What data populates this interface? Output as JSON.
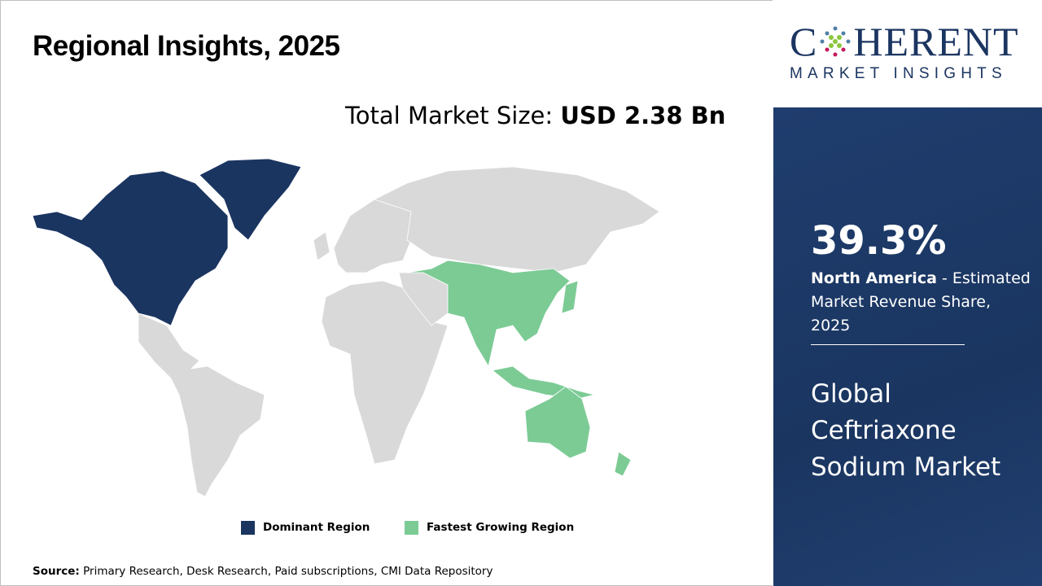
{
  "title": "Regional Insights, 2025",
  "total_market": {
    "label": "Total Market Size:",
    "value": "USD 2.38 Bn"
  },
  "legend": [
    {
      "label": "Dominant Region",
      "color": "#1b3561"
    },
    {
      "label": "Fastest Growing Region",
      "color": "#7ccb95"
    }
  ],
  "source": {
    "label": "Source:",
    "text": "Primary Research, Desk Research, Paid subscriptions, CMI Data Repository"
  },
  "logo": {
    "top": "COHERENT",
    "bottom": "MARKET INSIGHTS"
  },
  "sidebar": {
    "share": "39.3%",
    "region": "North America",
    "share_desc": " - Estimated Market Revenue Share, 2025",
    "market_name": "Global Ceftriaxone Sodium Market"
  },
  "colors": {
    "dominant": "#1b3561",
    "fastest": "#7ccb95",
    "other": "#d9d9d9"
  }
}
